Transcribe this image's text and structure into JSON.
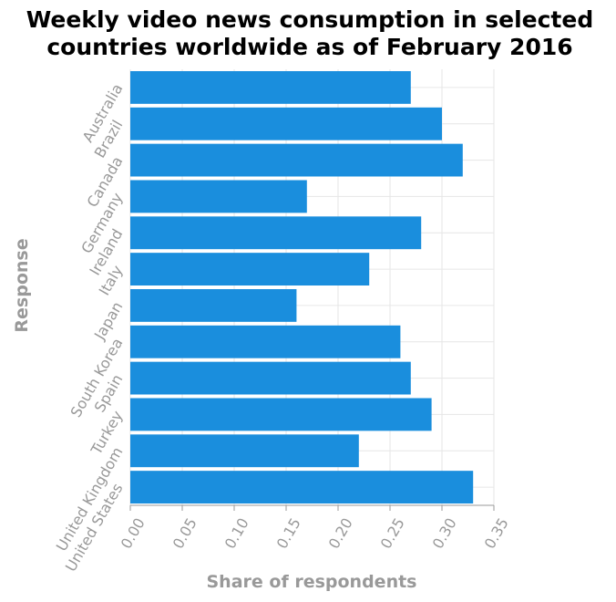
{
  "chart_data": {
    "type": "bar",
    "orientation": "horizontal",
    "title_lines": [
      "Weekly video news consumption in selected",
      "countries worldwide as of February 2016"
    ],
    "xlabel": "Share of respondents",
    "ylabel": "Response",
    "categories": [
      "Australia",
      "Brazil",
      "Canada",
      "Germany",
      "Ireland",
      "Italy",
      "Japan",
      "South Korea",
      "Spain",
      "Turkey",
      "United Kingdom",
      "United States"
    ],
    "values": [
      0.27,
      0.3,
      0.32,
      0.17,
      0.28,
      0.23,
      0.16,
      0.26,
      0.27,
      0.29,
      0.22,
      0.33
    ],
    "xlim": [
      0,
      0.35
    ],
    "xticks": [
      "0.00",
      "0.05",
      "0.10",
      "0.15",
      "0.20",
      "0.25",
      "0.30",
      "0.35"
    ],
    "grid": true,
    "bar_color": "#1a8edd"
  }
}
